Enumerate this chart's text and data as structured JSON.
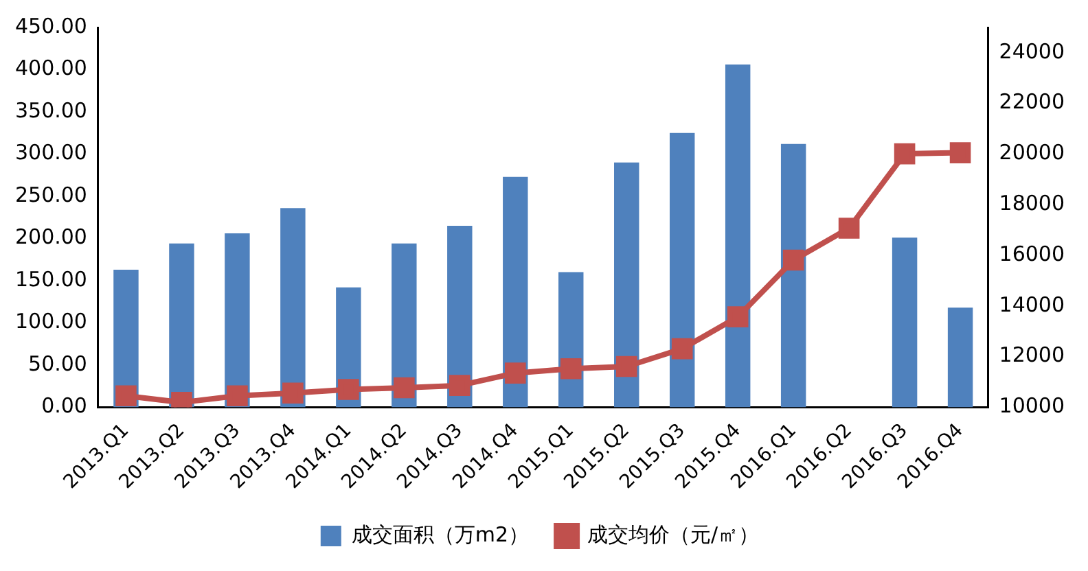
{
  "chart_data": {
    "type": "bar",
    "categories": [
      "2013.Q1",
      "2013.Q2",
      "2013.Q3",
      "2013.Q4",
      "2014.Q1",
      "2014.Q2",
      "2014.Q3",
      "2014.Q4",
      "2015.Q1",
      "2015.Q2",
      "2015.Q3",
      "2015.Q4",
      "2016.Q1",
      "2016.Q2",
      "2016.Q3",
      "2016.Q4"
    ],
    "series": [
      {
        "name": "成交面积（万m2）",
        "color": "#4f81bd",
        "values": [
          163,
          194,
          206,
          236,
          142,
          194,
          215,
          273,
          160,
          290,
          325,
          406,
          312,
          null,
          201,
          118
        ]
      },
      {
        "name": "成交均价（元/㎡）",
        "type": "line",
        "axis": "y2",
        "color": "#c0504d",
        "values": [
          10450,
          10190,
          10450,
          10560,
          10700,
          10770,
          10860,
          11350,
          11520,
          11610,
          12310,
          13570,
          15810,
          17070,
          20010,
          20050
        ]
      }
    ],
    "ylim": [
      0,
      450
    ],
    "yticks": [
      {
        "value": 0,
        "label": "0.00"
      },
      {
        "value": 50,
        "label": "50.00"
      },
      {
        "value": 100,
        "label": "100.00"
      },
      {
        "value": 150,
        "label": "150.00"
      },
      {
        "value": 200,
        "label": "200.00"
      },
      {
        "value": 250,
        "label": "250.00"
      },
      {
        "value": 300,
        "label": "300.00"
      },
      {
        "value": 350,
        "label": "350.00"
      },
      {
        "value": 400,
        "label": "400.00"
      },
      {
        "value": 450,
        "label": "450.00"
      }
    ],
    "y2lim": [
      10000,
      25000
    ],
    "y2ticks": [
      10000,
      12000,
      14000,
      16000,
      18000,
      20000,
      22000,
      24000
    ],
    "grid": false,
    "legend": "bottom",
    "marker": "square",
    "line_style": "solid"
  }
}
